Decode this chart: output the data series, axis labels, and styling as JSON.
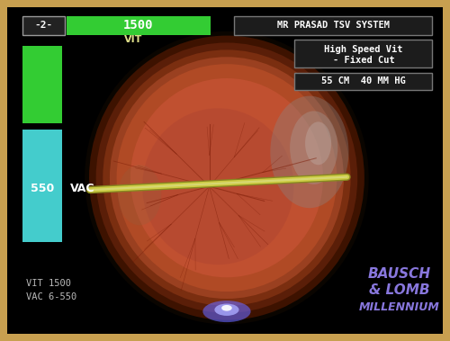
{
  "bg_color": "#000000",
  "border_color": "#C8A050",
  "title": "MR PRASAD TSV SYSTEM",
  "subtitle1": "High Speed Vit",
  "subtitle2": "- Fixed Cut",
  "pressure": "55 CM  40 MM HG",
  "vit_label": "VIT",
  "vac_label": "VAC",
  "vit_value": "1500",
  "vac_value": "550",
  "counter_label": "-2-",
  "vit_text_bottom": "VIT 1500",
  "vac_text_bottom": "VAC 6-550",
  "bar_green_color": "#33cc33",
  "bar_cyan_color": "#44cccc",
  "brand1": "BAUSCH",
  "brand2": "& LOMB",
  "brand3": "MILLENNIUM",
  "brand_color": "#8877dd",
  "bottom_text_color": "#bbbbbb",
  "ui_box_bg": "#1c1c1c",
  "ui_box_edge": "#777777"
}
